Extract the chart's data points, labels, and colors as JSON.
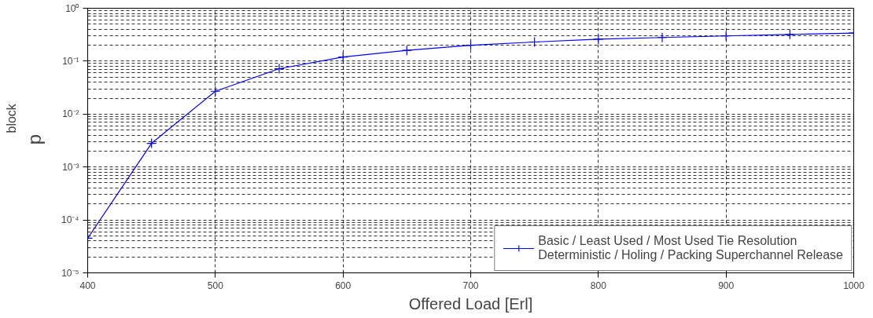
{
  "chart_data": {
    "type": "line",
    "xlabel": "Offered Load [Erl]",
    "ylabel": "p$_{block}$",
    "x": [
      400,
      450,
      500,
      550,
      600,
      650,
      700,
      750,
      800,
      850,
      900,
      950,
      1000
    ],
    "series": [
      {
        "name": "Basic / Least Used / Most Used Tie Resolution\nDeterministic / Holing / Packing Superchannel Release",
        "color": "#0000ff",
        "values": [
          4.5e-05,
          0.0028,
          0.027,
          0.072,
          0.12,
          0.16,
          0.2,
          0.23,
          0.26,
          0.28,
          0.3,
          0.32,
          0.34
        ]
      }
    ],
    "log": "y",
    "xlim": [
      400,
      1000
    ],
    "ylim": [
      1e-05,
      1
    ],
    "xticks": [
      400,
      500,
      600,
      700,
      800,
      900,
      1000
    ],
    "yticks": [
      {
        "value": 1e-05,
        "label": "10⁻⁵"
      },
      {
        "value": 0.0001,
        "label": "10⁻⁴"
      },
      {
        "value": 0.001,
        "label": "10⁻³"
      },
      {
        "value": 0.01,
        "label": "10⁻²"
      },
      {
        "value": 0.1,
        "label": "10⁻¹"
      },
      {
        "value": 1,
        "label": "10⁰"
      }
    ],
    "grid": true,
    "legend": "bottom right",
    "marker": "cross",
    "line_style": "solid"
  }
}
